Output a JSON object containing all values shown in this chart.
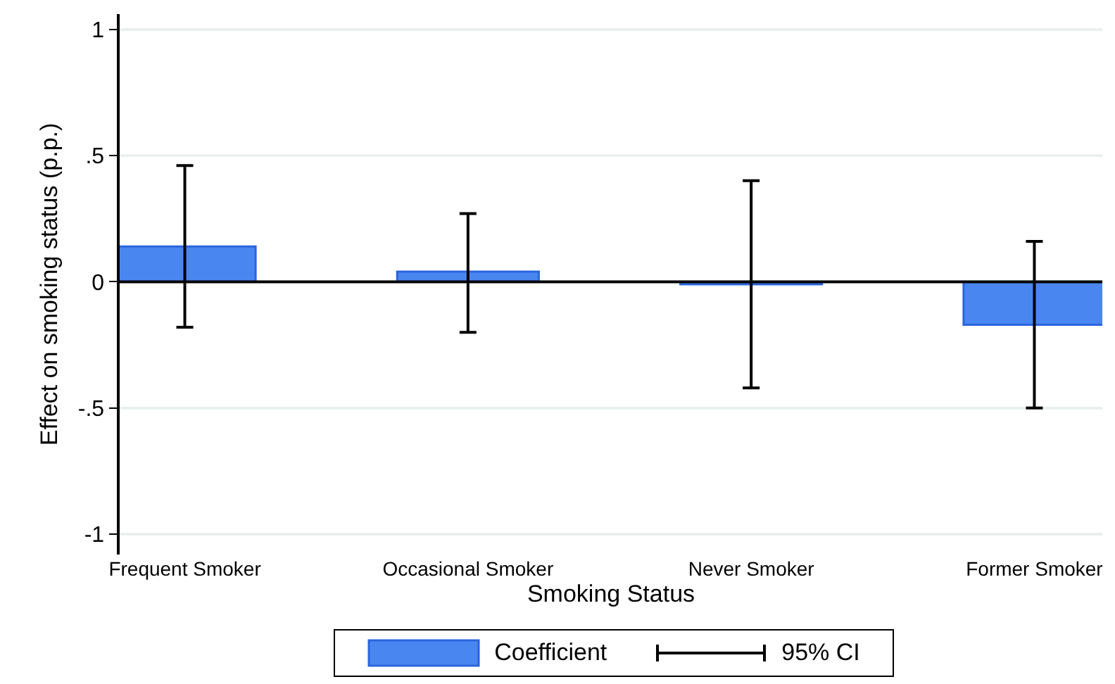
{
  "chart_data": {
    "type": "bar",
    "xlabel": "Smoking Status",
    "ylabel": "Effect on smoking status (p.p.)",
    "categories": [
      "Frequent Smoker",
      "Occasional Smoker",
      "Never Smoker",
      "Former Smoker"
    ],
    "series": [
      {
        "name": "Coefficient",
        "color": "#4a86f0",
        "values": [
          0.14,
          0.04,
          -0.01,
          -0.17
        ],
        "errors": [
          [
            -0.18,
            0.46
          ],
          [
            -0.2,
            0.27
          ],
          [
            -0.42,
            0.4
          ],
          [
            -0.5,
            0.16
          ]
        ]
      }
    ],
    "annotations": [
      "95% CI"
    ],
    "ylim": [
      -1.08,
      1.06
    ],
    "yticks": [
      {
        "value": -1,
        "label": "-1"
      },
      {
        "value": -0.5,
        "label": "-.5"
      },
      {
        "value": 0,
        "label": "0"
      },
      {
        "value": 0.5,
        "label": ".5"
      },
      {
        "value": 1,
        "label": "1"
      }
    ],
    "grid": "y",
    "legend": "bottom",
    "ref_lines": [
      {
        "axis": "y",
        "value": 0,
        "color": "#000000"
      }
    ]
  }
}
